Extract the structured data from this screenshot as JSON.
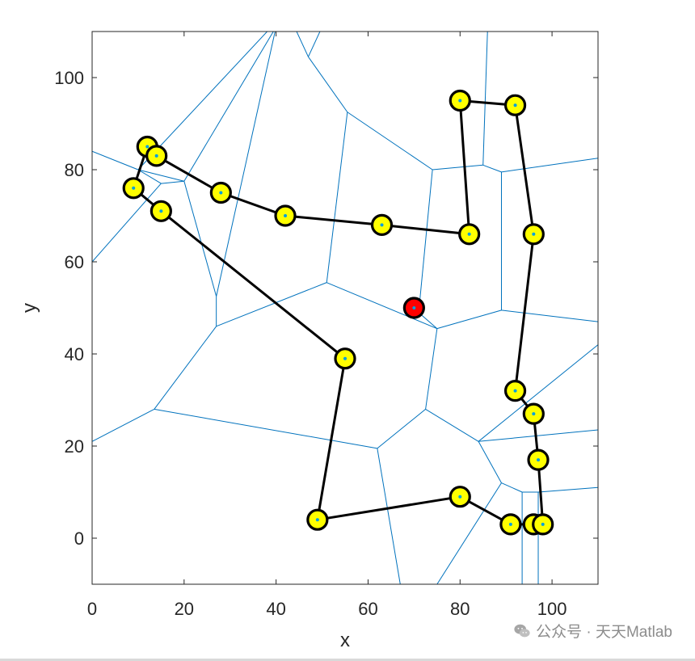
{
  "chart_data": {
    "type": "scatter",
    "xlabel": "x",
    "ylabel": "y",
    "xlim": [
      0,
      110
    ],
    "ylim": [
      -10,
      110
    ],
    "xticks": [
      0,
      20,
      40,
      60,
      80,
      100
    ],
    "yticks": [
      0,
      20,
      40,
      60,
      80,
      100
    ],
    "grid": false,
    "colors": {
      "marker_fill": "#ffff00",
      "marker_edge": "#000000",
      "route": "#000000",
      "voronoi": "#0072bd",
      "center_dot": "#00a0e0",
      "start": "#ff0000"
    },
    "start_point": {
      "x": 70,
      "y": 50
    },
    "points": [
      {
        "x": 12,
        "y": 85
      },
      {
        "x": 14,
        "y": 83
      },
      {
        "x": 9,
        "y": 76
      },
      {
        "x": 15,
        "y": 71
      },
      {
        "x": 28,
        "y": 75
      },
      {
        "x": 42,
        "y": 70
      },
      {
        "x": 63,
        "y": 68
      },
      {
        "x": 82,
        "y": 66
      },
      {
        "x": 80,
        "y": 95
      },
      {
        "x": 92,
        "y": 94
      },
      {
        "x": 96,
        "y": 66
      },
      {
        "x": 55,
        "y": 39
      },
      {
        "x": 92,
        "y": 32
      },
      {
        "x": 96,
        "y": 27
      },
      {
        "x": 97,
        "y": 17
      },
      {
        "x": 49,
        "y": 4
      },
      {
        "x": 80,
        "y": 9
      },
      {
        "x": 91,
        "y": 3
      },
      {
        "x": 96,
        "y": 3
      },
      {
        "x": 98,
        "y": 3
      }
    ],
    "route_order": [
      4,
      5,
      6,
      7,
      8,
      9,
      10,
      12,
      13,
      14,
      19,
      18,
      17,
      16,
      15,
      11,
      3,
      2,
      0,
      1,
      4
    ],
    "voronoi_edges": [
      [
        [
          0,
          84
        ],
        [
          10,
          80
        ]
      ],
      [
        [
          10,
          80
        ],
        [
          20,
          77.5
        ]
      ],
      [
        [
          0,
          60
        ],
        [
          15,
          77
        ]
      ],
      [
        [
          10,
          80
        ],
        [
          15,
          77
        ]
      ],
      [
        [
          15,
          77
        ],
        [
          20,
          77.5
        ]
      ],
      [
        [
          10,
          80
        ],
        [
          39,
          111
        ]
      ],
      [
        [
          20,
          77.5
        ],
        [
          40,
          111
        ]
      ],
      [
        [
          20,
          77.5
        ],
        [
          27,
          52.5
        ]
      ],
      [
        [
          27,
          52.5
        ],
        [
          40,
          111
        ]
      ],
      [
        [
          27,
          52.5
        ],
        [
          27,
          46
        ]
      ],
      [
        [
          27,
          46
        ],
        [
          51,
          55.5
        ]
      ],
      [
        [
          27,
          46
        ],
        [
          13.5,
          28
        ]
      ],
      [
        [
          13.5,
          28
        ],
        [
          0,
          21
        ]
      ],
      [
        [
          13.5,
          28
        ],
        [
          62,
          19.5
        ]
      ],
      [
        [
          51,
          55.5
        ],
        [
          55.5,
          92.5
        ]
      ],
      [
        [
          51,
          55.5
        ],
        [
          75,
          45.5
        ]
      ],
      [
        [
          55.5,
          92.5
        ],
        [
          74,
          80
        ]
      ],
      [
        [
          55.5,
          92.5
        ],
        [
          47,
          104.5
        ]
      ],
      [
        [
          47,
          104.5
        ],
        [
          44,
          111
        ]
      ],
      [
        [
          47,
          104.5
        ],
        [
          50,
          111
        ]
      ],
      [
        [
          74,
          80
        ],
        [
          71,
          49
        ]
      ],
      [
        [
          71,
          49
        ],
        [
          75,
          45.5
        ]
      ],
      [
        [
          74,
          80
        ],
        [
          85,
          81
        ]
      ],
      [
        [
          85,
          81
        ],
        [
          86,
          111
        ]
      ],
      [
        [
          85,
          81
        ],
        [
          89,
          79.5
        ]
      ],
      [
        [
          89,
          79.5
        ],
        [
          110,
          82.5
        ]
      ],
      [
        [
          89,
          79.5
        ],
        [
          89,
          49.5
        ]
      ],
      [
        [
          75,
          45.5
        ],
        [
          89,
          49.5
        ]
      ],
      [
        [
          89,
          49.5
        ],
        [
          110,
          47
        ]
      ],
      [
        [
          75,
          45.5
        ],
        [
          72.5,
          28
        ]
      ],
      [
        [
          72.5,
          28
        ],
        [
          62,
          19.5
        ]
      ],
      [
        [
          72.5,
          28
        ],
        [
          84,
          21
        ]
      ],
      [
        [
          62,
          19.5
        ],
        [
          67,
          -10
        ]
      ],
      [
        [
          84,
          21
        ],
        [
          110,
          42
        ]
      ],
      [
        [
          84,
          21
        ],
        [
          110,
          23.5
        ]
      ],
      [
        [
          84,
          21
        ],
        [
          89,
          12
        ]
      ],
      [
        [
          89,
          12
        ],
        [
          75,
          -10
        ]
      ],
      [
        [
          89,
          12
        ],
        [
          93.5,
          10
        ]
      ],
      [
        [
          93.5,
          10
        ],
        [
          93.5,
          -10
        ]
      ],
      [
        [
          93.5,
          10
        ],
        [
          97,
          10
        ]
      ],
      [
        [
          97,
          10
        ],
        [
          97,
          -10
        ]
      ],
      [
        [
          97,
          10
        ],
        [
          110,
          11
        ]
      ]
    ]
  },
  "watermark": {
    "text": "公众号 · 天天Matlab"
  }
}
